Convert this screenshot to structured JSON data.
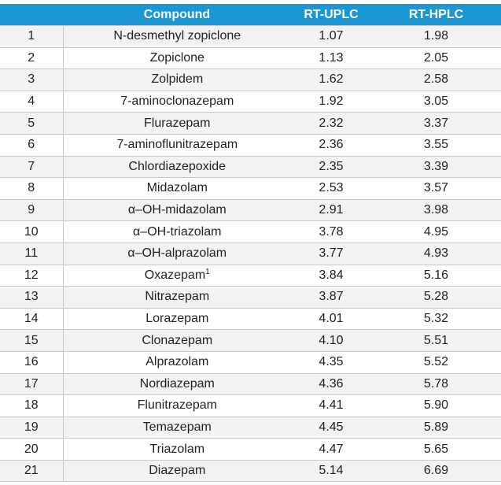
{
  "table": {
    "header": [
      "",
      "Compound",
      "RT-UPLC",
      "RT-HPLC"
    ],
    "rows": [
      {
        "no": "1",
        "compound": "N-desmethyl zopiclone",
        "uplc": "1.07",
        "hplc": "1.98"
      },
      {
        "no": "2",
        "compound": "Zopiclone",
        "uplc": "1.13",
        "hplc": "2.05"
      },
      {
        "no": "3",
        "compound": "Zolpidem",
        "uplc": "1.62",
        "hplc": "2.58"
      },
      {
        "no": "4",
        "compound": "7-aminoclonazepam",
        "uplc": "1.92",
        "hplc": "3.05"
      },
      {
        "no": "5",
        "compound": "Flurazepam",
        "uplc": "2.32",
        "hplc": "3.37"
      },
      {
        "no": "6",
        "compound": "7-aminoflunitrazepam",
        "uplc": "2.36",
        "hplc": "3.55"
      },
      {
        "no": "7",
        "compound": "Chlordiazepoxide",
        "uplc": "2.35",
        "hplc": "3.39"
      },
      {
        "no": "8",
        "compound": "Midazolam",
        "uplc": "2.53",
        "hplc": "3.57"
      },
      {
        "no": "9",
        "compound": "α–OH-midazolam",
        "uplc": "2.91",
        "hplc": "3.98"
      },
      {
        "no": "10",
        "compound": "α–OH-triazolam",
        "uplc": "3.78",
        "hplc": "4.95"
      },
      {
        "no": "11",
        "compound": "α–OH-alprazolam",
        "uplc": "3.77",
        "hplc": "4.93"
      },
      {
        "no": "12",
        "compound": "Oxazepam",
        "sup": "1",
        "uplc": "3.84",
        "hplc": "5.16"
      },
      {
        "no": "13",
        "compound": "Nitrazepam",
        "uplc": "3.87",
        "hplc": "5.28"
      },
      {
        "no": "14",
        "compound": "Lorazepam",
        "uplc": "4.01",
        "hplc": "5.32"
      },
      {
        "no": "15",
        "compound": "Clonazepam",
        "uplc": "4.10",
        "hplc": "5.51"
      },
      {
        "no": "16",
        "compound": "Alprazolam",
        "uplc": "4.35",
        "hplc": "5.52"
      },
      {
        "no": "17",
        "compound": "Nordiazepam",
        "uplc": "4.36",
        "hplc": "5.78"
      },
      {
        "no": "18",
        "compound": "Flunitrazepam",
        "uplc": "4.41",
        "hplc": "5.90"
      },
      {
        "no": "19",
        "compound": "Temazepam",
        "uplc": "4.45",
        "hplc": "5.89"
      },
      {
        "no": "20",
        "compound": "Triazolam",
        "uplc": "4.47",
        "hplc": "5.65"
      },
      {
        "no": "21",
        "compound": "Diazepam",
        "uplc": "5.14",
        "hplc": "6.69"
      }
    ]
  }
}
